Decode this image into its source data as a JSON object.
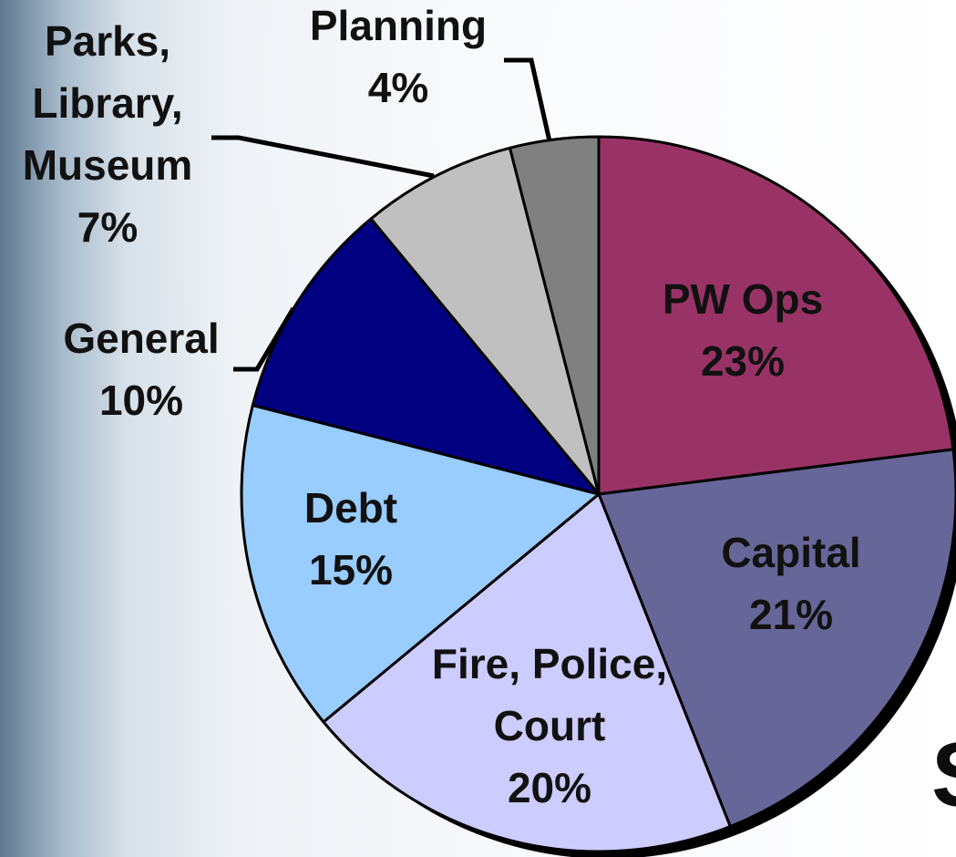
{
  "chart_data": {
    "type": "pie",
    "title": "",
    "slices": [
      {
        "name": "PW Ops",
        "label_lines": [
          "PW Ops",
          "23%"
        ],
        "value": 23,
        "color": "#993366"
      },
      {
        "name": "Capital",
        "label_lines": [
          "Capital",
          "21%"
        ],
        "value": 21,
        "color": "#666699"
      },
      {
        "name": "Fire, Police, Court",
        "label_lines": [
          "Fire, Police,",
          "Court",
          "20%"
        ],
        "value": 20,
        "color": "#ccccff"
      },
      {
        "name": "Debt",
        "label_lines": [
          "Debt",
          "15%"
        ],
        "value": 15,
        "color": "#99ccff"
      },
      {
        "name": "General",
        "label_lines": [
          "General",
          "10%"
        ],
        "value": 10,
        "color": "#000080"
      },
      {
        "name": "Parks, Library, Museum",
        "label_lines": [
          "Parks,",
          "Library,",
          "Museum",
          "7%"
        ],
        "value": 7,
        "color": "#c0c0c0"
      },
      {
        "name": "Planning",
        "label_lines": [
          "Planning",
          "4%"
        ],
        "value": 4,
        "color": "#808080"
      }
    ],
    "start_angle": "12 o'clock",
    "direction": "clockwise",
    "outline_color": "#000000"
  },
  "partial_text": "S"
}
